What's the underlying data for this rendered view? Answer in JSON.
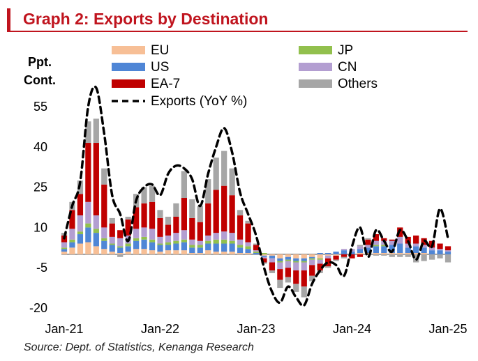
{
  "header": {
    "title": "Graph 2: Exports by Destination"
  },
  "footer": {
    "source": "Source:  Dept. of Statistics, Kenanga Research"
  },
  "colors": {
    "EU": "#f7bf96",
    "US": "#4f86d6",
    "EA-7": "#c00000",
    "JP": "#92c04d",
    "CN": "#b39ed1",
    "Others": "#a6a6a6",
    "Exports": "#000000",
    "accent": "#c0141e"
  },
  "chart_data": {
    "type": "bar",
    "stacked": true,
    "ylabel": [
      "Ppt.",
      "Cont."
    ],
    "ylim": [
      -20,
      60
    ],
    "yticks": [
      55,
      40,
      25,
      10,
      -5,
      -20
    ],
    "xtick_labels": [
      "Jan-21",
      "Jan-22",
      "Jan-23",
      "Jan-24",
      "Jan-25"
    ],
    "xtick_index": [
      0,
      12,
      24,
      36,
      48
    ],
    "legend_position": "top",
    "x": [
      "Jan-21",
      "Feb-21",
      "Mar-21",
      "Apr-21",
      "May-21",
      "Jun-21",
      "Jul-21",
      "Aug-21",
      "Sep-21",
      "Oct-21",
      "Nov-21",
      "Dec-21",
      "Jan-22",
      "Feb-22",
      "Mar-22",
      "Apr-22",
      "May-22",
      "Jun-22",
      "Jul-22",
      "Aug-22",
      "Sep-22",
      "Oct-22",
      "Nov-22",
      "Dec-22",
      "Jan-23",
      "Feb-23",
      "Mar-23",
      "Apr-23",
      "May-23",
      "Jun-23",
      "Jul-23",
      "Aug-23",
      "Sep-23",
      "Oct-23",
      "Nov-23",
      "Dec-23",
      "Jan-24",
      "Feb-24",
      "Mar-24",
      "Apr-24",
      "May-24",
      "Jun-24",
      "Jul-24",
      "Aug-24",
      "Sep-24",
      "Oct-24",
      "Nov-24",
      "Dec-24",
      "Jan-25"
    ],
    "series": [
      {
        "name": "EU",
        "values": [
          1.0,
          2.5,
          4.0,
          4.5,
          3.0,
          2.0,
          1.0,
          0.5,
          1.0,
          2.0,
          2.0,
          1.5,
          1.0,
          1.5,
          1.5,
          1.5,
          0.5,
          0.5,
          1.5,
          1.0,
          1.0,
          1.0,
          0.5,
          0.5,
          0.0,
          -0.5,
          -0.5,
          -1.5,
          -1.0,
          -1.5,
          -1.5,
          -1.0,
          -1.5,
          -0.5,
          -0.5,
          0.0,
          0.0,
          0.5,
          0.5,
          0.5,
          0.5,
          0.5,
          0.5,
          0.5,
          0.5,
          0.5,
          0.0,
          0.0,
          0.0
        ]
      },
      {
        "name": "US",
        "values": [
          1.0,
          2.0,
          3.5,
          5.5,
          5.0,
          3.0,
          2.5,
          2.0,
          2.0,
          3.0,
          3.5,
          3.0,
          2.5,
          2.0,
          2.5,
          3.0,
          2.0,
          2.0,
          2.5,
          3.0,
          3.0,
          3.0,
          2.0,
          1.5,
          0.5,
          -0.5,
          -1.0,
          -1.0,
          -1.0,
          -1.0,
          -1.0,
          -0.5,
          0.5,
          0.5,
          1.0,
          1.5,
          1.0,
          1.5,
          2.0,
          2.5,
          2.5,
          3.0,
          3.5,
          2.0,
          2.5,
          2.0,
          1.5,
          1.5,
          1.0
        ]
      },
      {
        "name": "JP",
        "values": [
          0.5,
          1.0,
          1.0,
          1.5,
          1.5,
          1.0,
          0.5,
          0.5,
          1.0,
          1.0,
          1.0,
          1.0,
          0.5,
          1.0,
          1.0,
          1.0,
          1.0,
          1.0,
          1.0,
          1.5,
          1.5,
          1.0,
          1.0,
          1.0,
          0.5,
          0.5,
          0.0,
          -0.5,
          -0.5,
          -0.5,
          -0.5,
          -0.5,
          -0.5,
          0.0,
          0.0,
          0.0,
          0.0,
          0.0,
          0.0,
          0.5,
          0.5,
          0.0,
          0.0,
          0.0,
          0.0,
          0.0,
          0.0,
          0.0,
          0.0
        ]
      },
      {
        "name": "CN",
        "values": [
          2.0,
          4.0,
          6.0,
          8.0,
          5.0,
          4.0,
          2.5,
          3.0,
          3.0,
          3.5,
          3.5,
          4.0,
          2.5,
          2.5,
          3.0,
          3.5,
          2.0,
          1.5,
          2.0,
          2.5,
          3.0,
          3.0,
          2.0,
          1.5,
          0.5,
          -0.5,
          -1.5,
          -2.5,
          -2.5,
          -3.0,
          -3.0,
          -2.0,
          -1.5,
          -1.0,
          0.0,
          0.5,
          1.0,
          1.0,
          1.0,
          1.5,
          1.5,
          1.5,
          2.5,
          1.5,
          1.0,
          1.0,
          1.0,
          0.5,
          0.5
        ]
      },
      {
        "name": "EA-7",
        "values": [
          2.5,
          7.0,
          8.0,
          22.0,
          27.0,
          16.0,
          5.0,
          3.0,
          6.0,
          8.0,
          9.0,
          10.0,
          7.0,
          4.0,
          6.0,
          12.0,
          8.0,
          7.0,
          12.0,
          16.0,
          17.0,
          14.0,
          9.0,
          7.0,
          2.0,
          -1.5,
          -3.0,
          -4.0,
          -3.5,
          -5.0,
          -6.0,
          -4.0,
          -2.5,
          -3.0,
          -1.5,
          -1.0,
          -1.5,
          -1.0,
          2.0,
          2.5,
          1.0,
          0.5,
          3.5,
          2.5,
          3.0,
          2.5,
          2.5,
          2.0,
          1.5
        ]
      },
      {
        "name": "Others",
        "values": [
          1.0,
          3.0,
          5.0,
          8.0,
          9.0,
          6.0,
          2.0,
          -1.0,
          1.0,
          5.0,
          6.0,
          6.0,
          3.0,
          3.0,
          5.0,
          10.0,
          7.0,
          6.0,
          9.0,
          12.0,
          13.0,
          10.0,
          2.0,
          1.0,
          0.5,
          -0.5,
          -1.0,
          -3.0,
          -2.0,
          -3.0,
          -4.0,
          -2.0,
          -1.0,
          -0.5,
          -0.5,
          -0.5,
          0.0,
          0.5,
          0.5,
          -0.5,
          -0.5,
          -1.0,
          -1.0,
          -1.0,
          -3.0,
          -2.5,
          -2.0,
          -1.5,
          -3.0
        ]
      }
    ],
    "line": {
      "name": "Exports (YoY %)",
      "values": [
        6,
        18,
        27,
        55,
        62,
        45,
        22,
        15,
        5,
        20,
        25,
        26,
        22,
        30,
        33,
        32,
        28,
        18,
        30,
        40,
        47,
        38,
        23,
        15,
        7,
        -5,
        -14,
        -18,
        -12,
        -16,
        -19,
        -11,
        -6,
        -3,
        -4,
        -8,
        3,
        10,
        -1,
        9,
        5,
        1,
        9,
        5,
        -2,
        5,
        3,
        17,
        6
      ]
    }
  }
}
